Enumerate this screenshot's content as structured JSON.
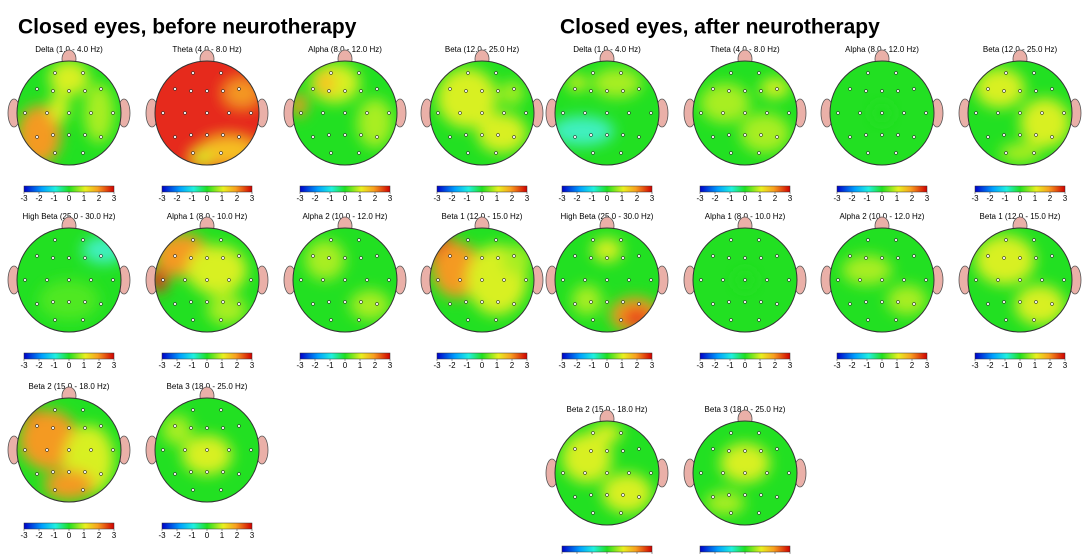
{
  "panels": [
    {
      "title": "Closed eyes, before neurotherapy",
      "maps": [
        {
          "label": "Delta (1.0 - 4.0 Hz)"
        },
        {
          "label": "Theta (4.0 - 8.0 Hz)"
        },
        {
          "label": "Alpha (8.0 - 12.0 Hz)"
        },
        {
          "label": "Beta (12.0 - 25.0 Hz)"
        },
        {
          "label": "High Beta (25.0 - 30.0 Hz)"
        },
        {
          "label": "Alpha 1 (8.0 - 10.0 Hz)"
        },
        {
          "label": "Alpha 2 (10.0 - 12.0 Hz)"
        },
        {
          "label": "Beta 1 (12.0 - 15.0 Hz)"
        },
        {
          "label": "Beta 2 (15.0 - 18.0 Hz)"
        },
        {
          "label": "Beta 3 (18.0 - 25.0 Hz)"
        }
      ]
    },
    {
      "title": "Closed eyes, after neurotherapy",
      "maps": [
        {
          "label": "Delta (1.0 - 4.0 Hz)"
        },
        {
          "label": "Theta (4.0 - 8.0 Hz)"
        },
        {
          "label": "Alpha (8.0 - 12.0 Hz)"
        },
        {
          "label": "Beta (12.0 - 25.0 Hz)"
        },
        {
          "label": "High Beta (25.0 - 30.0 Hz)"
        },
        {
          "label": "Alpha 1 (8.0 - 10.0 Hz)"
        },
        {
          "label": "Alpha 2 (10.0 - 12.0 Hz)"
        },
        {
          "label": "Beta 1 (12.0 - 15.0 Hz)"
        },
        {
          "label": "Beta 2 (15.0 - 18.0 Hz)"
        },
        {
          "label": "Beta 3 (18.0 - 25.0 Hz)"
        }
      ]
    }
  ],
  "colorbar_ticks": [
    "-3",
    "-2",
    "-1",
    "0",
    "1",
    "2",
    "3"
  ]
}
